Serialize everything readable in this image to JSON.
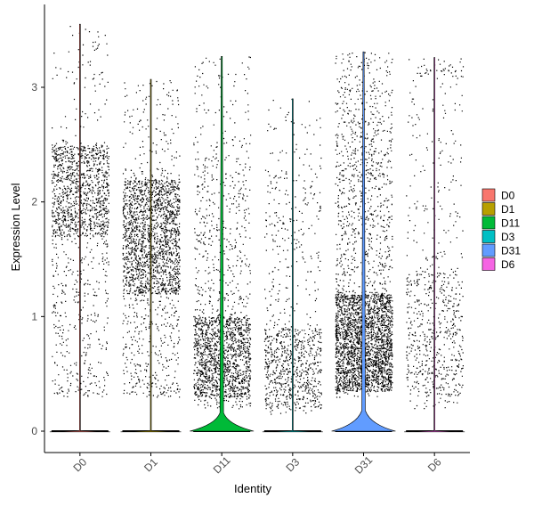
{
  "chart_data": {
    "type": "violin",
    "xlabel": "Identity",
    "ylabel": "Expression Level",
    "ylim": [
      -0.2,
      3.65
    ],
    "yticks": [
      0,
      1,
      2,
      3
    ],
    "categories": [
      "D0",
      "D1",
      "D11",
      "D3",
      "D31",
      "D6"
    ],
    "groups": [
      {
        "name": "D0",
        "color": "#F8766D",
        "max": 3.55,
        "jitter_range": [
          0.3,
          2.55
        ],
        "dense_band": [
          1.7,
          2.5
        ],
        "n_points": 1500,
        "zero_bulge": 0.0
      },
      {
        "name": "D1",
        "color": "#B79F00",
        "max": 3.07,
        "jitter_range": [
          0.3,
          2.3
        ],
        "dense_band": [
          1.2,
          2.2
        ],
        "n_points": 2200,
        "zero_bulge": 0.0
      },
      {
        "name": "D11",
        "color": "#00BA38",
        "max": 3.27,
        "jitter_range": [
          0.2,
          2.4
        ],
        "dense_band": [
          0.3,
          1.0
        ],
        "n_points": 1900,
        "zero_bulge": 0.16
      },
      {
        "name": "D3",
        "color": "#00BFC4",
        "max": 2.9,
        "jitter_range": [
          0.15,
          2.3
        ],
        "dense_band": [
          0.2,
          0.9
        ],
        "n_points": 950,
        "zero_bulge": 0.0
      },
      {
        "name": "D31",
        "color": "#619CFF",
        "max": 3.31,
        "jitter_range": [
          0.3,
          2.75
        ],
        "dense_band": [
          0.35,
          1.2
        ],
        "n_points": 3300,
        "zero_bulge": 0.18
      },
      {
        "name": "D6",
        "color": "#F564E3",
        "max": 3.26,
        "jitter_range": [
          0.2,
          3.1
        ],
        "dense_band": [
          0.3,
          1.4
        ],
        "n_points": 750,
        "zero_bulge": 0.0
      }
    ],
    "legend": {
      "position": "right",
      "entries": [
        "D0",
        "D1",
        "D11",
        "D3",
        "D31",
        "D6"
      ]
    },
    "grid": false
  }
}
